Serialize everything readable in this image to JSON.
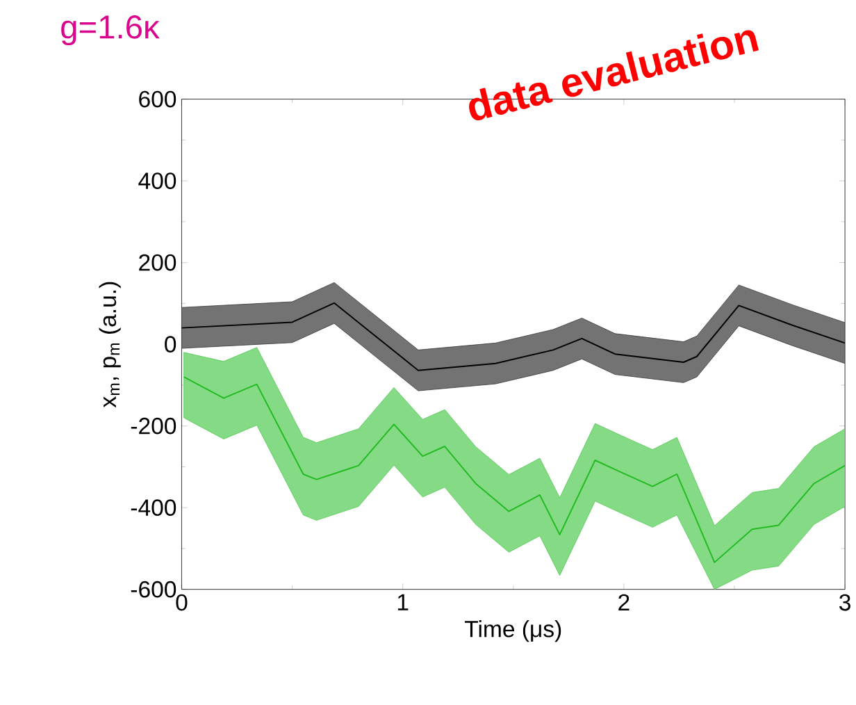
{
  "chart_data": {
    "type": "line",
    "title": "g=1.6κ",
    "xlabel": "Time (μs)",
    "ylabel": "x$_{m}$, p$_{m}$ (a.u.)",
    "annotations": [
      "data evaluation"
    ],
    "xlim": [
      0,
      3
    ],
    "ylim": [
      -600,
      600
    ],
    "xticks": [
      0,
      1,
      2,
      3
    ],
    "yticks": [
      -600,
      -400,
      -200,
      0,
      200,
      400,
      600
    ],
    "marker": "none",
    "line_style": "solid",
    "series": [
      {
        "color": "#000000",
        "x": [
          0,
          0.5,
          0.69,
          1.07,
          1.42,
          1.68,
          1.81,
          1.96,
          2.27,
          2.33,
          2.52,
          2.76,
          3.0
        ],
        "values": [
          40,
          54,
          101,
          -64,
          -47,
          -14,
          14,
          -24,
          -44,
          -30,
          95,
          47,
          3
        ],
        "lower": [
          -10,
          4,
          51,
          -114,
          -97,
          -64,
          -36,
          -74,
          -94,
          -80,
          45,
          -3,
          -47
        ],
        "upper": [
          90,
          104,
          151,
          -14,
          3,
          36,
          64,
          26,
          6,
          20,
          145,
          97,
          53
        ]
      },
      {
        "color": "#22bb22",
        "x": [
          0.01,
          0.19,
          0.34,
          0.55,
          0.61,
          0.8,
          0.96,
          1.09,
          1.19,
          1.33,
          1.48,
          1.62,
          1.71,
          1.87,
          1.99,
          2.13,
          2.24,
          2.41,
          2.58,
          2.7,
          2.86,
          3.0
        ],
        "values": [
          -80,
          -132,
          -98,
          -318,
          -331,
          -297,
          -196,
          -274,
          -250,
          -341,
          -409,
          -369,
          -466,
          -284,
          -314,
          -348,
          -318,
          -534,
          -453,
          -443,
          -341,
          -297
        ],
        "lower": [
          -180,
          -232,
          -198,
          -418,
          -431,
          -397,
          -296,
          -374,
          -350,
          -441,
          -509,
          -469,
          -566,
          -384,
          -414,
          -448,
          -418,
          -600,
          -553,
          -543,
          -441,
          -397
        ],
        "upper": [
          -20,
          -42,
          -8,
          -228,
          -241,
          -207,
          -106,
          -184,
          -160,
          -251,
          -319,
          -279,
          -376,
          -194,
          -224,
          -258,
          -228,
          -444,
          -363,
          -353,
          -251,
          -207
        ]
      }
    ]
  }
}
